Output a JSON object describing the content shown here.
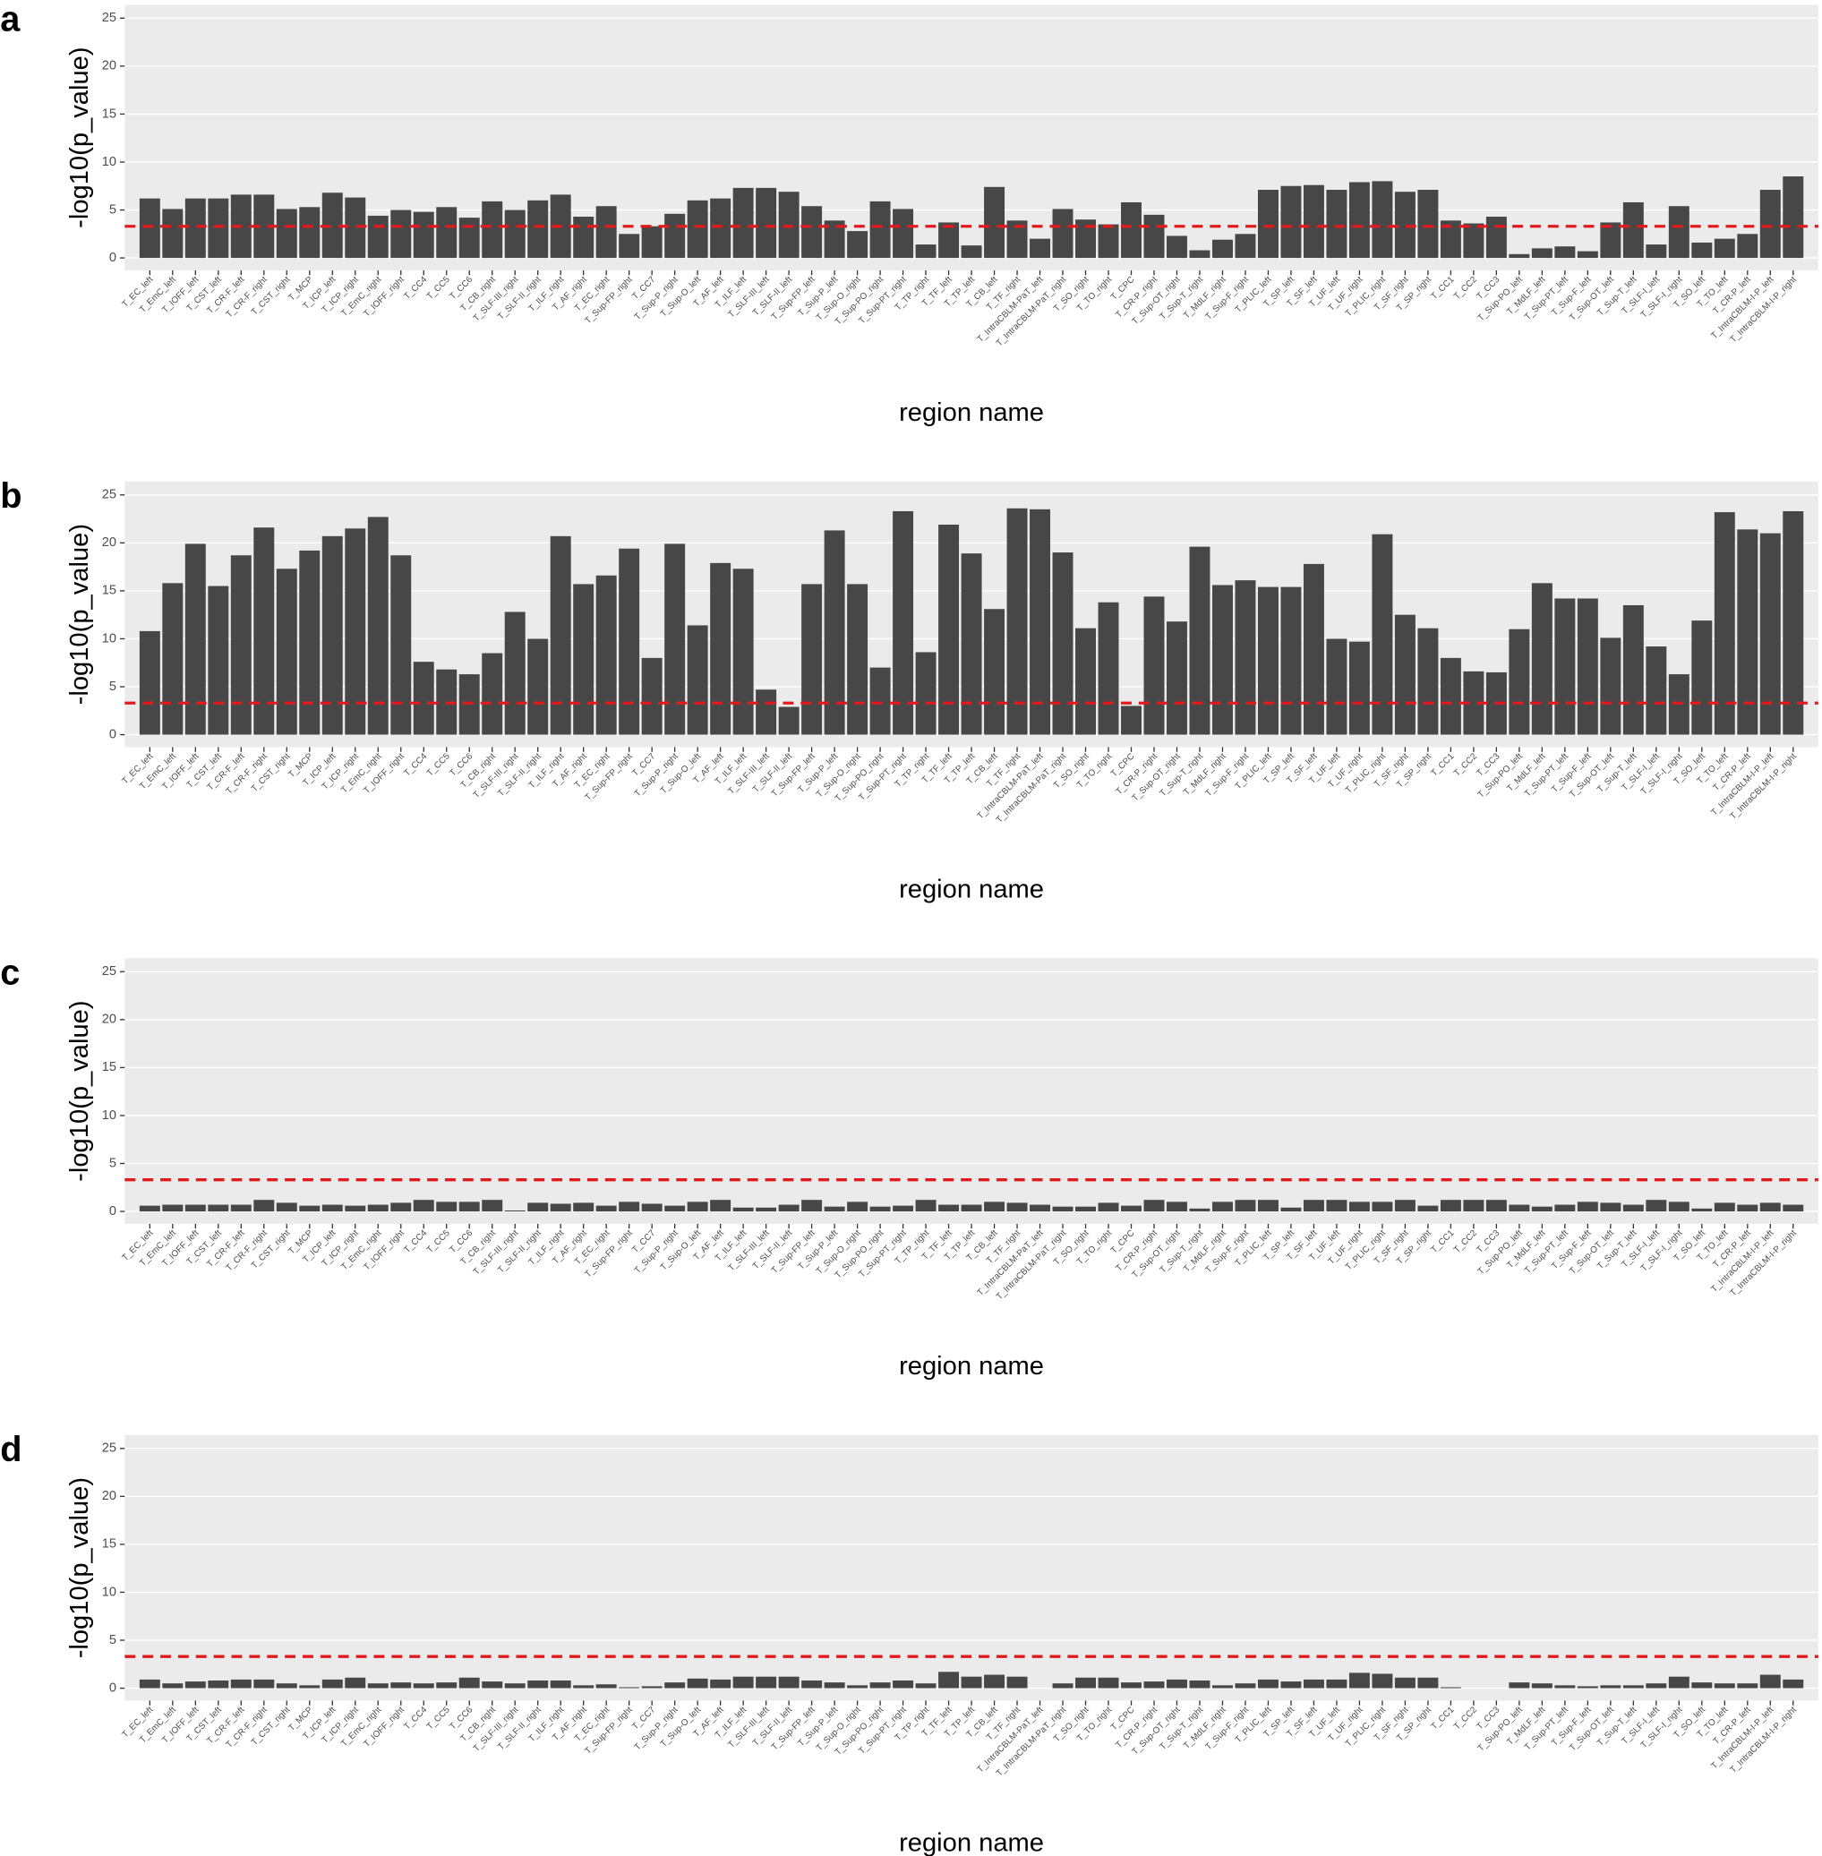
{
  "chart_data": [
    {
      "type": "bar",
      "panel_label": "a",
      "x_label": "region name",
      "y_label": "-log10(p_value)",
      "color": "#474747",
      "background": "#ebebeb",
      "threshold": 3.3,
      "threshold_color": "#e31a1c",
      "ylim": [
        -1.3,
        26.4
      ],
      "yticks": [
        0,
        5,
        10,
        15,
        20,
        25
      ],
      "categories": [
        "T_EC_left",
        "T_EmC_left",
        "T_IOFF_left",
        "T_CST_left",
        "T_CR-F_left",
        "T_CR-F_right",
        "T_CST_right",
        "T_MCP",
        "T_ICP_left",
        "T_ICP_right",
        "T_EmC_right",
        "T_IOFF_right",
        "T_CC4",
        "T_CC5",
        "T_CC6",
        "T_CB_right",
        "T_SLF-III_right",
        "T_SLF-II_right",
        "T_ILF_right",
        "T_AF_right",
        "T_EC_right",
        "T_Sup-FP_right",
        "T_CC7",
        "T_Sup-P_right",
        "T_Sup-O_left",
        "T_AF_left",
        "T_ILF_left",
        "T_SLF-III_left",
        "T_SLF-II_left",
        "T_Sup-FP_left",
        "T_Sup-P_left",
        "T_Sup-O_right",
        "T_Sup-PO_right",
        "T_Sup-PT_right",
        "T_TP_right",
        "T_TF_left",
        "T_TP_left",
        "T_CB_left",
        "T_TF_right",
        "T_IntraCBLM-PaT_left",
        "T_IntraCBLM-PaT_right",
        "T_SO_right",
        "T_TO_right",
        "T_CPC",
        "T_CR-P_right",
        "T_Sup-OT_right",
        "T_Sup-T_right",
        "T_MdLF_right",
        "T_Sup-F_right",
        "T_PLIC_left",
        "T_SP_left",
        "T_SF_left",
        "T_UF_left",
        "T_UF_right",
        "T_PLIC_right",
        "T_SF_right",
        "T_SP_right",
        "T_CC1",
        "T_CC2",
        "T_CC3",
        "T_Sup-PO_left",
        "T_MdLF_left",
        "T_Sup-PT_left",
        "T_Sup-F_left",
        "T_Sup-OT_left",
        "T_Sup-T_left",
        "T_SLF-I_left",
        "T_SLF-I_right",
        "T_SO_left",
        "T_TO_left",
        "T_CR-P_left",
        "T_IntraCBLM-I-P_left",
        "T_IntraCBLM-I-P_right"
      ],
      "values": [
        6.2,
        5.1,
        6.2,
        6.2,
        6.6,
        6.6,
        5.1,
        5.3,
        6.8,
        6.3,
        4.4,
        5.0,
        4.8,
        5.3,
        4.2,
        5.9,
        5.0,
        6.0,
        6.6,
        4.3,
        5.4,
        2.5,
        3.3,
        4.6,
        6.0,
        6.2,
        7.3,
        7.3,
        6.9,
        5.4,
        3.9,
        2.8,
        5.9,
        5.1,
        1.4,
        3.7,
        1.3,
        7.4,
        3.9,
        2.0,
        5.1,
        4.0,
        3.5,
        5.8,
        4.5,
        2.3,
        0.8,
        1.9,
        2.5,
        7.1,
        7.5,
        7.6,
        7.1,
        7.9,
        8.0,
        6.9,
        7.1,
        3.9,
        3.6,
        4.3,
        0.4,
        1.0,
        1.2,
        0.7,
        3.7,
        5.8,
        1.4,
        5.4,
        1.6,
        2.0,
        2.5,
        7.1,
        8.5
      ]
    },
    {
      "type": "bar",
      "panel_label": "b",
      "x_label": "region name",
      "y_label": "-log10(p_value)",
      "color": "#474747",
      "background": "#ebebeb",
      "threshold": 3.3,
      "threshold_color": "#e31a1c",
      "ylim": [
        -1.3,
        26.4
      ],
      "yticks": [
        0,
        5,
        10,
        15,
        20,
        25
      ],
      "categories": [
        "T_EC_left",
        "T_EmC_left",
        "T_IOFF_left",
        "T_CST_left",
        "T_CR-F_left",
        "T_CR-F_right",
        "T_CST_right",
        "T_MCP",
        "T_ICP_left",
        "T_ICP_right",
        "T_EmC_right",
        "T_IOFF_right",
        "T_CC4",
        "T_CC5",
        "T_CC6",
        "T_CB_right",
        "T_SLF-III_right",
        "T_SLF-II_right",
        "T_ILF_right",
        "T_AF_right",
        "T_EC_right",
        "T_Sup-FP_right",
        "T_CC7",
        "T_Sup-P_right",
        "T_Sup-O_left",
        "T_AF_left",
        "T_ILF_left",
        "T_SLF-III_left",
        "T_SLF-II_left",
        "T_Sup-FP_left",
        "T_Sup-P_left",
        "T_Sup-O_right",
        "T_Sup-PO_right",
        "T_Sup-PT_right",
        "T_TP_right",
        "T_TF_left",
        "T_TP_left",
        "T_CB_left",
        "T_TF_right",
        "T_IntraCBLM-PaT_left",
        "T_IntraCBLM-PaT_right",
        "T_SO_right",
        "T_TO_right",
        "T_CPC",
        "T_CR-P_right",
        "T_Sup-OT_right",
        "T_Sup-T_right",
        "T_MdLF_right",
        "T_Sup-F_right",
        "T_PLIC_left",
        "T_SP_left",
        "T_SF_left",
        "T_UF_left",
        "T_UF_right",
        "T_PLIC_right",
        "T_SF_right",
        "T_SP_right",
        "T_CC1",
        "T_CC2",
        "T_CC3",
        "T_Sup-PO_left",
        "T_MdLF_left",
        "T_Sup-PT_left",
        "T_Sup-F_left",
        "T_Sup-OT_left",
        "T_Sup-T_left",
        "T_SLF-I_left",
        "T_SLF-I_right",
        "T_SO_left",
        "T_TO_left",
        "T_CR-P_left",
        "T_IntraCBLM-I-P_left",
        "T_IntraCBLM-I-P_right"
      ],
      "values": [
        10.8,
        15.8,
        19.9,
        15.5,
        18.7,
        21.6,
        17.3,
        19.2,
        20.7,
        21.5,
        22.7,
        18.7,
        7.6,
        6.8,
        6.3,
        8.5,
        12.8,
        10.0,
        20.7,
        15.7,
        16.6,
        19.4,
        8.0,
        19.9,
        11.4,
        17.9,
        17.3,
        4.7,
        2.9,
        15.7,
        21.3,
        15.7,
        7.0,
        23.3,
        8.6,
        21.9,
        18.9,
        13.1,
        23.6,
        23.5,
        19.0,
        11.1,
        13.8,
        3.0,
        14.4,
        11.8,
        19.6,
        15.6,
        16.1,
        15.4,
        15.4,
        17.8,
        10.0,
        9.7,
        20.9,
        12.5,
        11.1,
        8.0,
        6.6,
        6.5,
        11.0,
        15.8,
        14.2,
        14.2,
        10.1,
        13.5,
        9.2,
        6.3,
        11.9,
        23.2,
        21.4,
        21.0,
        23.3
      ]
    },
    {
      "type": "bar",
      "panel_label": "c",
      "x_label": "region name",
      "y_label": "-log10(p_value)",
      "color": "#474747",
      "background": "#ebebeb",
      "threshold": 3.3,
      "threshold_color": "#e31a1c",
      "ylim": [
        -1.3,
        26.4
      ],
      "yticks": [
        0,
        5,
        10,
        15,
        20,
        25
      ],
      "categories": [
        "T_EC_left",
        "T_EmC_left",
        "T_IOFF_left",
        "T_CST_left",
        "T_CR-F_left",
        "T_CR-F_right",
        "T_CST_right",
        "T_MCP",
        "T_ICP_left",
        "T_ICP_right",
        "T_EmC_right",
        "T_IOFF_right",
        "T_CC4",
        "T_CC5",
        "T_CC6",
        "T_CB_right",
        "T_SLF-III_right",
        "T_SLF-II_right",
        "T_ILF_right",
        "T_AF_right",
        "T_EC_right",
        "T_Sup-FP_right",
        "T_CC7",
        "T_Sup-P_right",
        "T_Sup-O_left",
        "T_AF_left",
        "T_ILF_left",
        "T_SLF-III_left",
        "T_SLF-II_left",
        "T_Sup-FP_left",
        "T_Sup-P_left",
        "T_Sup-O_right",
        "T_Sup-PO_right",
        "T_Sup-PT_right",
        "T_TP_right",
        "T_TF_left",
        "T_TP_left",
        "T_CB_left",
        "T_TF_right",
        "T_IntraCBLM-PaT_left",
        "T_IntraCBLM-PaT_right",
        "T_SO_right",
        "T_TO_right",
        "T_CPC",
        "T_CR-P_right",
        "T_Sup-OT_right",
        "T_Sup-T_right",
        "T_MdLF_right",
        "T_Sup-F_right",
        "T_PLIC_left",
        "T_SP_left",
        "T_SF_left",
        "T_UF_left",
        "T_UF_right",
        "T_PLIC_right",
        "T_SF_right",
        "T_SP_right",
        "T_CC1",
        "T_CC2",
        "T_CC3",
        "T_Sup-PO_left",
        "T_MdLF_left",
        "T_Sup-PT_left",
        "T_Sup-F_left",
        "T_Sup-OT_left",
        "T_Sup-T_left",
        "T_SLF-I_left",
        "T_SLF-I_right",
        "T_SO_left",
        "T_TO_left",
        "T_CR-P_left",
        "T_IntraCBLM-I-P_left",
        "T_IntraCBLM-I-P_right"
      ],
      "values": [
        0.6,
        0.7,
        0.7,
        0.7,
        0.7,
        1.2,
        0.9,
        0.6,
        0.7,
        0.6,
        0.7,
        0.9,
        1.2,
        1.0,
        1.0,
        1.2,
        0.1,
        0.9,
        0.8,
        0.9,
        0.6,
        1.0,
        0.8,
        0.6,
        1.0,
        1.2,
        0.4,
        0.4,
        0.7,
        1.2,
        0.5,
        1.0,
        0.5,
        0.6,
        1.2,
        0.7,
        0.7,
        1.0,
        0.9,
        0.7,
        0.5,
        0.5,
        0.9,
        0.6,
        1.2,
        1.0,
        0.3,
        1.0,
        1.2,
        1.2,
        0.4,
        1.2,
        1.2,
        1.0,
        1.0,
        1.2,
        0.6,
        1.2,
        1.2,
        1.2,
        0.7,
        0.5,
        0.7,
        1.0,
        0.9,
        0.7,
        1.2,
        1.0,
        0.3,
        0.9,
        0.7,
        0.9,
        0.7
      ]
    },
    {
      "type": "bar",
      "panel_label": "d",
      "x_label": "region name",
      "y_label": "-log10(p_value)",
      "color": "#474747",
      "background": "#ebebeb",
      "threshold": 3.3,
      "threshold_color": "#e31a1c",
      "ylim": [
        -1.3,
        26.4
      ],
      "yticks": [
        0,
        5,
        10,
        15,
        20,
        25
      ],
      "categories": [
        "T_EC_left",
        "T_EmC_left",
        "T_IOFF_left",
        "T_CST_left",
        "T_CR-F_left",
        "T_CR-F_right",
        "T_CST_right",
        "T_MCP",
        "T_ICP_left",
        "T_ICP_right",
        "T_EmC_right",
        "T_IOFF_right",
        "T_CC4",
        "T_CC5",
        "T_CC6",
        "T_CB_right",
        "T_SLF-III_right",
        "T_SLF-II_right",
        "T_ILF_right",
        "T_AF_right",
        "T_EC_right",
        "T_Sup-FP_right",
        "T_CC7",
        "T_Sup-P_right",
        "T_Sup-O_left",
        "T_AF_left",
        "T_ILF_left",
        "T_SLF-III_left",
        "T_SLF-II_left",
        "T_Sup-FP_left",
        "T_Sup-P_left",
        "T_Sup-O_right",
        "T_Sup-PO_right",
        "T_Sup-PT_right",
        "T_TP_right",
        "T_TF_left",
        "T_TP_left",
        "T_CB_left",
        "T_TF_right",
        "T_IntraCBLM-PaT_left",
        "T_IntraCBLM-PaT_right",
        "T_SO_right",
        "T_TO_right",
        "T_CPC",
        "T_CR-P_right",
        "T_Sup-OT_right",
        "T_Sup-T_right",
        "T_MdLF_right",
        "T_Sup-F_right",
        "T_PLIC_left",
        "T_SP_left",
        "T_SF_left",
        "T_UF_left",
        "T_UF_right",
        "T_PLIC_right",
        "T_SF_right",
        "T_SP_right",
        "T_CC1",
        "T_CC2",
        "T_CC3",
        "T_Sup-PO_left",
        "T_MdLF_left",
        "T_Sup-PT_left",
        "T_Sup-F_left",
        "T_Sup-OT_left",
        "T_Sup-T_left",
        "T_SLF-I_left",
        "T_SLF-I_right",
        "T_SO_left",
        "T_TO_left",
        "T_CR-P_left",
        "T_IntraCBLM-I-P_left",
        "T_IntraCBLM-I-P_right"
      ],
      "values": [
        0.9,
        0.5,
        0.7,
        0.8,
        0.9,
        0.9,
        0.5,
        0.3,
        0.9,
        1.1,
        0.5,
        0.6,
        0.5,
        0.6,
        1.1,
        0.7,
        0.5,
        0.8,
        0.8,
        0.3,
        0.4,
        0.1,
        0.2,
        0.6,
        1.0,
        0.9,
        1.2,
        1.2,
        1.2,
        0.8,
        0.6,
        0.3,
        0.6,
        0.8,
        0.5,
        1.7,
        1.2,
        1.4,
        1.2,
        null,
        0.5,
        1.1,
        1.1,
        0.6,
        0.7,
        0.9,
        0.8,
        0.3,
        0.5,
        0.9,
        0.7,
        0.9,
        0.9,
        1.6,
        1.5,
        1.1,
        1.1,
        0.1,
        null,
        null,
        0.6,
        0.5,
        0.3,
        0.2,
        0.3,
        0.3,
        0.5,
        1.2,
        0.6,
        0.5,
        0.5,
        1.4,
        0.9
      ]
    }
  ]
}
